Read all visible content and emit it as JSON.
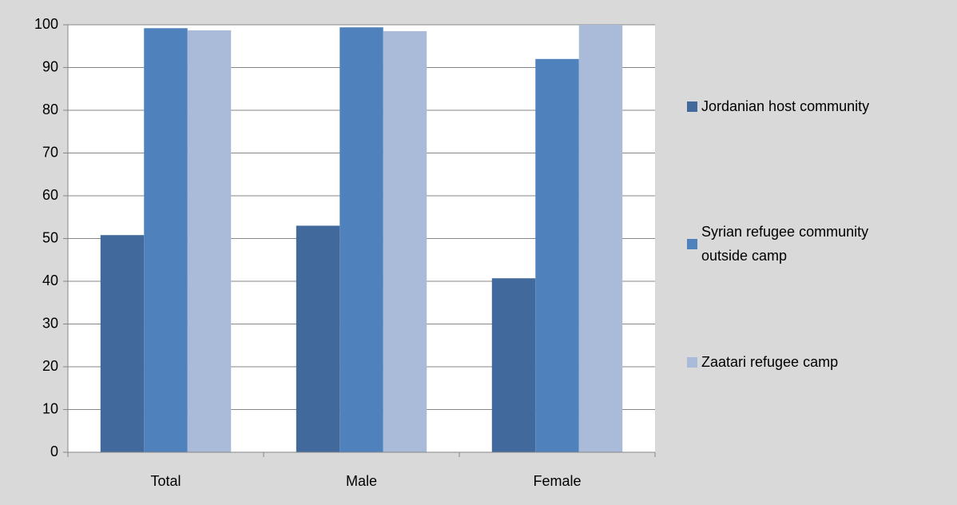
{
  "chart_data": {
    "type": "bar",
    "categories": [
      "Total",
      "Male",
      "Female"
    ],
    "series": [
      {
        "name": "Jordanian host community",
        "color": "#41699c",
        "values": [
          50.8,
          53,
          40.7
        ]
      },
      {
        "name": "Syrian refugee community outside camp",
        "color": "#4f81bd",
        "values": [
          99.2,
          99.4,
          92
        ]
      },
      {
        "name": "Zaatari refugee camp",
        "color": "#aabad9",
        "values": [
          98.7,
          98.5,
          100
        ]
      }
    ],
    "ylim": [
      0,
      100
    ],
    "yticks": [
      0,
      10,
      20,
      30,
      40,
      50,
      60,
      70,
      80,
      90,
      100
    ],
    "grid": true,
    "legend": "right"
  }
}
